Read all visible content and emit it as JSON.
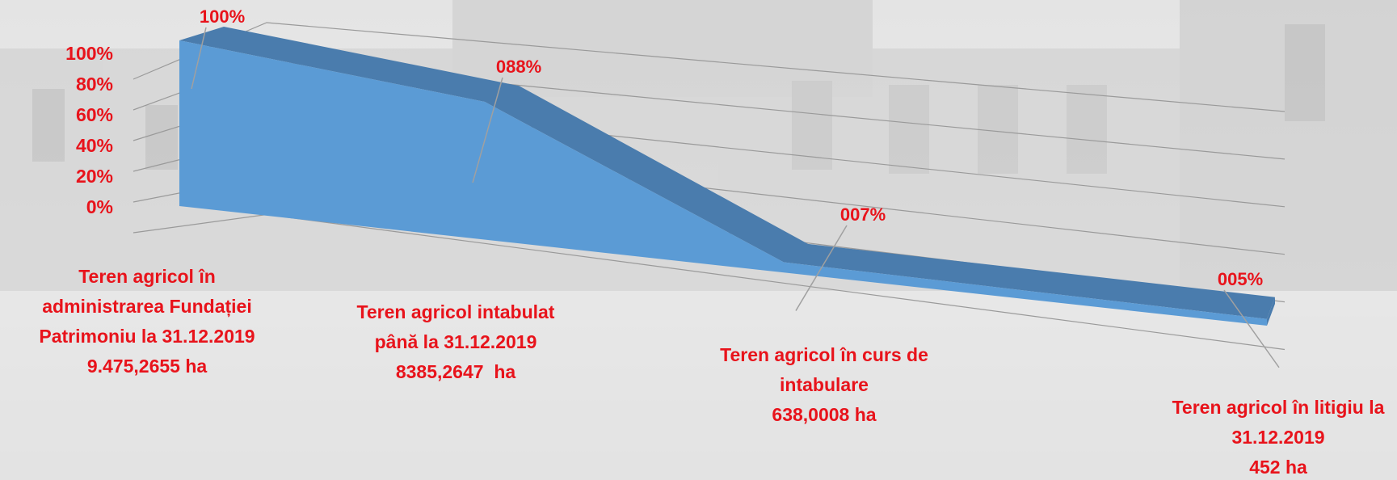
{
  "chart_data": {
    "type": "area3d",
    "categories": [
      [
        "Teren agricol în",
        "administrarea Fundației",
        "Patrimoniu la 31.12.2019",
        "9.475,2655 ha"
      ],
      [
        "Teren agricol intabulat",
        "până la 31.12.2019",
        "8385,2647  ha"
      ],
      [
        "Teren agricol în curs de",
        "intabulare",
        "638,0008 ha"
      ],
      [
        "Teren agricol în litigiu la",
        "31.12.2019",
        "452 ha"
      ]
    ],
    "values": [
      100,
      88,
      7,
      5
    ],
    "value_labels": [
      "100%",
      "088%",
      "007%",
      "005%"
    ],
    "ylim": [
      0,
      100
    ],
    "yticks": [
      {
        "value": 0,
        "label": "0%"
      },
      {
        "value": 20,
        "label": "20%"
      },
      {
        "value": 40,
        "label": "40%"
      },
      {
        "value": 60,
        "label": "60%"
      },
      {
        "value": 80,
        "label": "80%"
      },
      {
        "value": 100,
        "label": "100%"
      }
    ],
    "grid": true,
    "front_color": "#5b9bd5",
    "top_color": "#4a7cad"
  }
}
